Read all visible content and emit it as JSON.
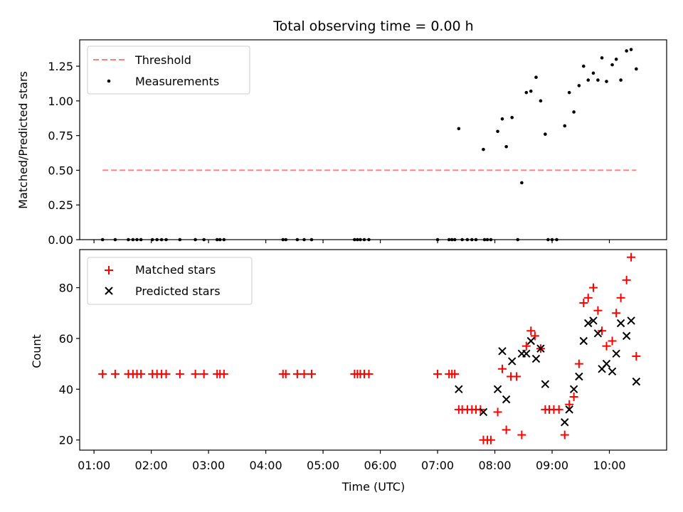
{
  "chart_data": [
    {
      "type": "scatter",
      "title": "Total observing time = 0.00 h",
      "xlabel": "",
      "ylabel": "Matched/Predicted stars",
      "xlim": [
        0.75,
        11.0
      ],
      "ylim": [
        0.0,
        1.44
      ],
      "yticks": [
        0.0,
        0.25,
        0.5,
        0.75,
        1.0,
        1.25
      ],
      "ytick_labels": [
        "0.00",
        "0.25",
        "0.50",
        "0.75",
        "1.00",
        "1.25"
      ],
      "grid": false,
      "legend": {
        "position": "top-left",
        "entries": [
          "Threshold",
          "Measurements"
        ]
      },
      "series": [
        {
          "name": "Threshold",
          "kind": "line",
          "color": "#ff7f7f",
          "dash": "dashed",
          "points": [
            [
              1.15,
              0.5
            ],
            [
              10.47,
              0.5
            ]
          ]
        },
        {
          "name": "Measurements",
          "kind": "scatter",
          "marker": "dot",
          "color": "#000000",
          "points": [
            [
              1.15,
              0.0
            ],
            [
              1.37,
              0.0
            ],
            [
              1.6,
              0.0
            ],
            [
              1.68,
              0.0
            ],
            [
              1.75,
              0.0
            ],
            [
              1.82,
              0.0
            ],
            [
              2.02,
              0.0
            ],
            [
              2.1,
              0.0
            ],
            [
              2.18,
              0.0
            ],
            [
              2.26,
              0.0
            ],
            [
              2.5,
              0.0
            ],
            [
              2.77,
              0.0
            ],
            [
              2.92,
              0.0
            ],
            [
              3.15,
              0.0
            ],
            [
              3.2,
              0.0
            ],
            [
              3.27,
              0.0
            ],
            [
              4.3,
              0.0
            ],
            [
              4.35,
              0.0
            ],
            [
              4.55,
              0.0
            ],
            [
              4.67,
              0.0
            ],
            [
              4.8,
              0.0
            ],
            [
              5.55,
              0.0
            ],
            [
              5.6,
              0.0
            ],
            [
              5.65,
              0.0
            ],
            [
              5.72,
              0.0
            ],
            [
              5.8,
              0.0
            ],
            [
              7.0,
              0.0
            ],
            [
              7.2,
              0.0
            ],
            [
              7.25,
              0.0
            ],
            [
              7.3,
              0.0
            ],
            [
              7.43,
              0.0
            ],
            [
              7.52,
              0.0
            ],
            [
              7.6,
              0.0
            ],
            [
              7.67,
              0.0
            ],
            [
              7.82,
              0.0
            ],
            [
              7.87,
              0.0
            ],
            [
              7.93,
              0.0
            ],
            [
              8.4,
              0.0
            ],
            [
              8.93,
              0.0
            ],
            [
              9.0,
              0.0
            ],
            [
              9.08,
              0.0
            ],
            [
              7.37,
              0.8
            ],
            [
              7.8,
              0.65
            ],
            [
              8.05,
              0.78
            ],
            [
              8.13,
              0.87
            ],
            [
              8.2,
              0.67
            ],
            [
              8.3,
              0.88
            ],
            [
              8.47,
              0.41
            ],
            [
              8.55,
              1.06
            ],
            [
              8.63,
              1.07
            ],
            [
              8.72,
              1.17
            ],
            [
              8.8,
              1.0
            ],
            [
              8.88,
              0.76
            ],
            [
              9.22,
              0.82
            ],
            [
              9.3,
              1.06
            ],
            [
              9.38,
              0.92
            ],
            [
              9.47,
              1.11
            ],
            [
              9.55,
              1.25
            ],
            [
              9.63,
              1.15
            ],
            [
              9.72,
              1.2
            ],
            [
              9.8,
              1.15
            ],
            [
              9.87,
              1.31
            ],
            [
              9.95,
              1.14
            ],
            [
              10.05,
              1.26
            ],
            [
              10.12,
              1.3
            ],
            [
              10.2,
              1.15
            ],
            [
              10.3,
              1.36
            ],
            [
              10.38,
              1.37
            ],
            [
              10.47,
              1.23
            ]
          ]
        }
      ]
    },
    {
      "type": "scatter",
      "title": "",
      "xlabel": "Time (UTC)",
      "ylabel": "Count",
      "xlim": [
        0.75,
        11.0
      ],
      "ylim": [
        16.0,
        95.0
      ],
      "yticks": [
        20,
        40,
        60,
        80
      ],
      "ytick_labels": [
        "20",
        "40",
        "60",
        "80"
      ],
      "xticks": [
        1,
        2,
        3,
        4,
        5,
        6,
        7,
        8,
        9,
        10
      ],
      "xtick_labels": [
        "01:00",
        "02:00",
        "03:00",
        "04:00",
        "05:00",
        "06:00",
        "07:00",
        "08:00",
        "09:00",
        "10:00"
      ],
      "grid": false,
      "legend": {
        "position": "top-left",
        "entries": [
          "Matched stars",
          "Predicted stars"
        ]
      },
      "series": [
        {
          "name": "Matched stars",
          "kind": "scatter",
          "marker": "plus",
          "color": "#ff0000",
          "points": [
            [
              1.15,
              46
            ],
            [
              1.37,
              46
            ],
            [
              1.6,
              46
            ],
            [
              1.68,
              46
            ],
            [
              1.75,
              46
            ],
            [
              1.82,
              46
            ],
            [
              2.02,
              46
            ],
            [
              2.1,
              46
            ],
            [
              2.18,
              46
            ],
            [
              2.26,
              46
            ],
            [
              2.5,
              46
            ],
            [
              2.77,
              46
            ],
            [
              2.92,
              46
            ],
            [
              3.15,
              46
            ],
            [
              3.2,
              46
            ],
            [
              3.27,
              46
            ],
            [
              4.3,
              46
            ],
            [
              4.35,
              46
            ],
            [
              4.55,
              46
            ],
            [
              4.67,
              46
            ],
            [
              4.8,
              46
            ],
            [
              5.55,
              46
            ],
            [
              5.6,
              46
            ],
            [
              5.65,
              46
            ],
            [
              5.72,
              46
            ],
            [
              5.8,
              46
            ],
            [
              7.0,
              46
            ],
            [
              7.2,
              46
            ],
            [
              7.25,
              46
            ],
            [
              7.3,
              46
            ],
            [
              7.37,
              32
            ],
            [
              7.43,
              32
            ],
            [
              7.52,
              32
            ],
            [
              7.6,
              32
            ],
            [
              7.67,
              32
            ],
            [
              7.75,
              32
            ],
            [
              7.8,
              20
            ],
            [
              7.87,
              20
            ],
            [
              7.93,
              20
            ],
            [
              8.05,
              31
            ],
            [
              8.13,
              48
            ],
            [
              8.2,
              24
            ],
            [
              8.28,
              45
            ],
            [
              8.38,
              45
            ],
            [
              8.47,
              22
            ],
            [
              8.55,
              57
            ],
            [
              8.63,
              63
            ],
            [
              8.7,
              61
            ],
            [
              8.8,
              56
            ],
            [
              8.88,
              32
            ],
            [
              8.95,
              32
            ],
            [
              9.03,
              32
            ],
            [
              9.12,
              32
            ],
            [
              9.22,
              22
            ],
            [
              9.3,
              34
            ],
            [
              9.38,
              37
            ],
            [
              9.47,
              50
            ],
            [
              9.55,
              74
            ],
            [
              9.63,
              76
            ],
            [
              9.72,
              80
            ],
            [
              9.8,
              71
            ],
            [
              9.87,
              63
            ],
            [
              9.95,
              57
            ],
            [
              10.05,
              59
            ],
            [
              10.12,
              70
            ],
            [
              10.2,
              76
            ],
            [
              10.3,
              83
            ],
            [
              10.38,
              92
            ],
            [
              10.47,
              53
            ]
          ]
        },
        {
          "name": "Predicted stars",
          "kind": "scatter",
          "marker": "x",
          "color": "#000000",
          "points": [
            [
              7.37,
              40
            ],
            [
              7.8,
              31
            ],
            [
              8.05,
              40
            ],
            [
              8.13,
              55
            ],
            [
              8.2,
              36
            ],
            [
              8.3,
              51
            ],
            [
              8.47,
              54
            ],
            [
              8.55,
              54
            ],
            [
              8.63,
              59
            ],
            [
              8.72,
              52
            ],
            [
              8.8,
              56
            ],
            [
              8.88,
              42
            ],
            [
              9.22,
              27
            ],
            [
              9.3,
              32
            ],
            [
              9.38,
              40
            ],
            [
              9.47,
              45
            ],
            [
              9.55,
              59
            ],
            [
              9.63,
              66
            ],
            [
              9.72,
              67
            ],
            [
              9.8,
              62
            ],
            [
              9.87,
              48
            ],
            [
              9.95,
              50
            ],
            [
              10.05,
              47
            ],
            [
              10.12,
              54
            ],
            [
              10.2,
              66
            ],
            [
              10.3,
              61
            ],
            [
              10.38,
              67
            ],
            [
              10.47,
              43
            ]
          ]
        }
      ]
    }
  ]
}
